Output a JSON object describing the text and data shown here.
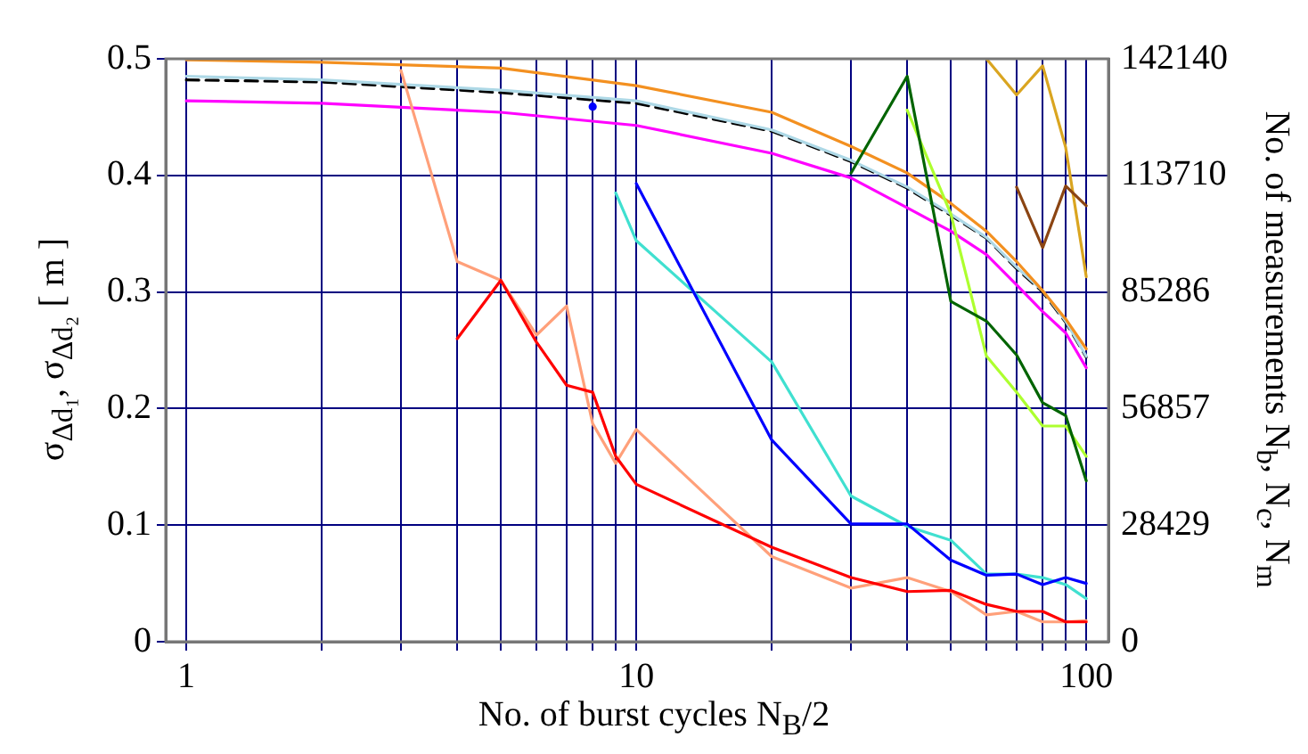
{
  "chart_data": {
    "type": "line",
    "xlabel": "No. of burst cycles N$_{B}$/2",
    "ylabel": "σ$_{Δd₁}$, σ$_{Δd₂}$ [ m ]",
    "y2label": "No. of measurements N$_{b}$, N$_{c}$, N$_{m}$",
    "log": "x",
    "grid": true,
    "legend": false,
    "marker": "none",
    "x": [
      3,
      4,
      5,
      6,
      7,
      8,
      9,
      10,
      20,
      30,
      40,
      50,
      60,
      70,
      80,
      90,
      100
    ],
    "xlim": [
      0.9,
      112
    ],
    "xticks": [
      1,
      {
        "value": 2,
        "label": null
      },
      {
        "value": 3,
        "label": null
      },
      {
        "value": 4,
        "label": null
      },
      {
        "value": 5,
        "label": null
      },
      {
        "value": 6,
        "label": null
      },
      {
        "value": 7,
        "label": null
      },
      {
        "value": 8,
        "label": null
      },
      {
        "value": 9,
        "label": null
      },
      10,
      {
        "value": 20,
        "label": null
      },
      {
        "value": 30,
        "label": null
      },
      {
        "value": 40,
        "label": null
      },
      {
        "value": 50,
        "label": null
      },
      {
        "value": 60,
        "label": null
      },
      {
        "value": 70,
        "label": null
      },
      {
        "value": 80,
        "label": null
      },
      {
        "value": 90,
        "label": null
      },
      100
    ],
    "ylim": [
      0,
      0.5
    ],
    "yticks": [
      0,
      0.1,
      0.2,
      0.3,
      0.4,
      0.5
    ],
    "y2lim": [
      0,
      142140
    ],
    "y2ticks": [
      0,
      28429,
      56857,
      85286,
      113710,
      142140
    ],
    "series": [
      {
        "color": "#ff0000",
        "values": [
          null,
          0.26,
          0.31,
          0.257,
          0.22,
          0.214,
          0.159,
          0.135,
          0.081,
          0.055,
          0.043,
          0.044,
          0.032,
          0.026,
          0.026,
          0.017,
          0.017
        ]
      },
      {
        "color": "#ffa07a",
        "values": [
          0.49,
          0.326,
          0.31,
          0.263,
          0.288,
          0.187,
          0.153,
          0.182,
          0.073,
          0.046,
          0.055,
          0.043,
          0.023,
          0.026,
          0.017,
          0.017,
          0.018
        ]
      },
      {
        "color": "#0000ff",
        "values": [
          null,
          null,
          null,
          null,
          null,
          0.459,
          null,
          0.393,
          0.173,
          0.101,
          0.101,
          0.07,
          0.057,
          0.058,
          0.049,
          0.055,
          0.05
        ]
      },
      {
        "color": "#40e0d0",
        "values": [
          null,
          null,
          null,
          null,
          null,
          null,
          0.385,
          0.344,
          0.24,
          0.125,
          0.099,
          0.087,
          0.058,
          0.058,
          0.055,
          0.049,
          0.037
        ]
      },
      {
        "color": "#006400",
        "values": [
          null,
          null,
          null,
          null,
          null,
          null,
          null,
          null,
          null,
          0.402,
          0.485,
          0.292,
          0.275,
          0.246,
          0.205,
          0.194,
          0.138
        ]
      },
      {
        "color": "#adff2f",
        "values": [
          null,
          null,
          null,
          null,
          null,
          null,
          null,
          null,
          null,
          null,
          0.456,
          0.367,
          0.245,
          0.214,
          0.185,
          0.185,
          0.159
        ]
      },
      {
        "color": "#8b4513",
        "values": [
          null,
          null,
          null,
          null,
          null,
          null,
          null,
          null,
          null,
          null,
          null,
          null,
          null,
          0.39,
          0.338,
          0.391,
          0.374
        ]
      },
      {
        "color": "#daa520",
        "values": [
          null,
          null,
          null,
          null,
          null,
          null,
          null,
          null,
          null,
          null,
          null,
          null,
          0.5,
          0.469,
          0.494,
          0.424,
          0.313
        ]
      },
      {
        "color": "#f39020",
        "axis": "y2",
        "x": [
          1,
          2,
          5,
          10,
          20,
          30,
          40,
          50,
          60,
          70,
          80,
          90,
          100
        ],
        "values": [
          141900,
          141300,
          139900,
          135600,
          129100,
          120800,
          114300,
          106900,
          100100,
          92700,
          85600,
          78700,
          71400
        ]
      },
      {
        "color": "#ff00ff",
        "axis": "y2",
        "x": [
          1,
          2,
          5,
          10,
          20,
          30,
          40,
          50,
          60,
          70,
          80,
          90,
          100
        ],
        "values": [
          131900,
          131300,
          129100,
          125900,
          119100,
          113100,
          105800,
          100100,
          94400,
          87000,
          80500,
          75300,
          66800
        ]
      },
      {
        "color": "#add8e6",
        "axis": "y2",
        "x": [
          1,
          2,
          5,
          10,
          20,
          30,
          40,
          50,
          60,
          70,
          80,
          90,
          100
        ],
        "values": [
          137900,
          137000,
          134500,
          131900,
          124800,
          117400,
          110900,
          104300,
          98600,
          91300,
          85600,
          78200,
          69600
        ]
      },
      {
        "color": "#000000",
        "axis": "y2",
        "line_style": "dashed",
        "x": [
          1,
          2,
          5,
          10,
          20,
          30,
          40,
          50,
          60,
          70,
          80,
          90,
          100
        ],
        "values": [
          137000,
          136500,
          133900,
          131300,
          124500,
          117100,
          110600,
          104000,
          98400,
          91000,
          85300,
          77900,
          69400
        ]
      }
    ]
  }
}
